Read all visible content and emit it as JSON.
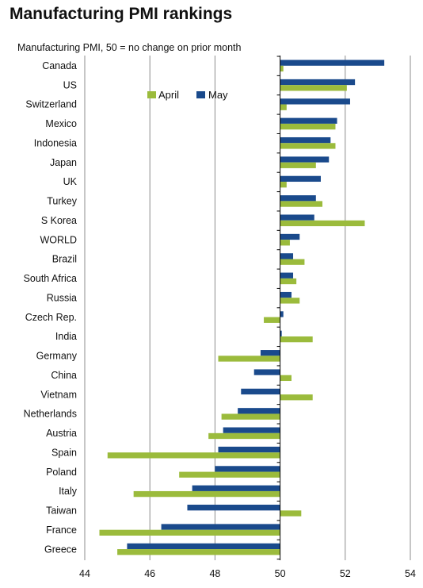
{
  "title": "Manufacturing PMI rankings",
  "subtitle": "Manufacturing PMI, 50 = no change on prior month",
  "chart_data": {
    "type": "bar",
    "orientation": "horizontal",
    "title": "Manufacturing PMI rankings",
    "subtitle": "Manufacturing PMI, 50 = no change on prior month",
    "baseline": 50,
    "xlim": [
      44,
      54
    ],
    "xticks": [
      44,
      46,
      48,
      50,
      52,
      54
    ],
    "grid": "vertical",
    "legend_position": "top",
    "categories": [
      "Canada",
      "US",
      "Switzerland",
      "Mexico",
      "Indonesia",
      "Japan",
      "UK",
      "Turkey",
      "S Korea",
      "WORLD",
      "Brazil",
      "South Africa",
      "Russia",
      "Czech Rep.",
      "India",
      "Germany",
      "China",
      "Vietnam",
      "Netherlands",
      "Austria",
      "Spain",
      "Poland",
      "Italy",
      "Taiwan",
      "France",
      "Greece"
    ],
    "series": [
      {
        "name": "April",
        "color": "#9bbb3c",
        "values": [
          50.1,
          52.05,
          50.2,
          51.7,
          51.7,
          51.1,
          50.2,
          51.3,
          52.6,
          50.3,
          50.75,
          50.5,
          50.6,
          49.5,
          51.0,
          48.1,
          50.35,
          51.0,
          48.2,
          47.8,
          44.7,
          46.9,
          45.5,
          50.65,
          44.45,
          45.0
        ]
      },
      {
        "name": "May",
        "color": "#1a4a8c",
        "values": [
          53.2,
          52.3,
          52.15,
          51.75,
          51.55,
          51.5,
          51.25,
          51.1,
          51.05,
          50.6,
          50.4,
          50.4,
          50.35,
          50.1,
          50.05,
          49.4,
          49.2,
          48.8,
          48.7,
          48.25,
          48.1,
          48.0,
          47.3,
          47.15,
          46.35,
          45.3
        ]
      }
    ]
  }
}
